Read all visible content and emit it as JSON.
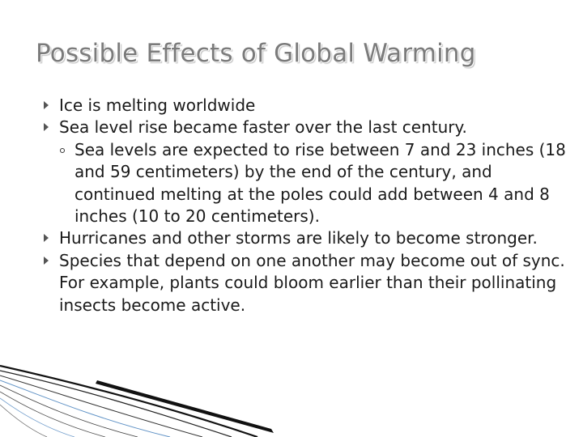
{
  "slide": {
    "title": "Possible Effects of Global Warming",
    "bullets": [
      {
        "text": "Ice is melting worldwide",
        "sub": []
      },
      {
        "text": "Sea level rise became faster over the last century.",
        "sub": [
          "Sea levels are expected to rise between 7 and 23 inches (18 and 59 centimeters) by the end of the century, and continued melting at the poles could add between 4 and 8 inches (10 to 20 centimeters)."
        ]
      },
      {
        "text": "Hurricanes and other storms are likely to become stronger.",
        "sub": []
      },
      {
        "text": "Species that depend on one another may become out of sync. For example, plants could bloom earlier than their pollinating insects become active.",
        "sub": []
      }
    ]
  },
  "icons": {
    "bullet": "right-triangle-arrow-icon",
    "sub_bullet": "hollow-circle-icon"
  },
  "colors": {
    "title": "#7b7b7b",
    "body_text": "#1a1a1a",
    "decor_stroke": "#111111",
    "decor_accent": "#3a78b8",
    "background": "#ffffff"
  }
}
